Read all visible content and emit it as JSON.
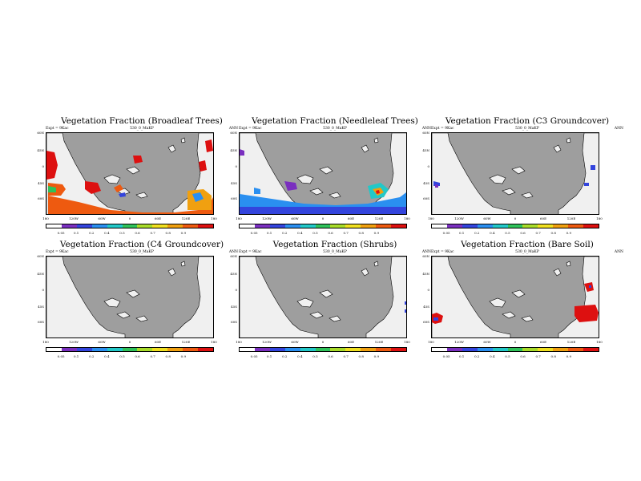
{
  "panels": [
    {
      "title": "Vegetation Fraction (Broadleaf Trees)",
      "expt": "Expt = 9Kac",
      "subtitle": "530_0_MaKP",
      "period": "ANN",
      "overlay": "broadleaf"
    },
    {
      "title": "Vegetation Fraction (Needleleaf Trees)",
      "expt": "Expt = 9Kac",
      "subtitle": "530_0_MaKP",
      "period": "ANN",
      "overlay": "needleleaf"
    },
    {
      "title": "Vegetation Fraction (C3 Groundcover)",
      "expt": "Expt = 9Kac",
      "subtitle": "530_0_MaKP",
      "period": "ANN",
      "overlay": "c3"
    },
    {
      "title": "Vegetation Fraction (C4 Groundcover)",
      "expt": "Expt = 9Kac",
      "subtitle": "530_0_MaKP",
      "period": "ANN",
      "overlay": "c4"
    },
    {
      "title": "Vegetation Fraction (Shrubs)",
      "expt": "Expt = 9Kac",
      "subtitle": "530_0_MaKP",
      "period": "ANN",
      "overlay": "shrubs"
    },
    {
      "title": "Vegetation Fraction (Bare Soil)",
      "expt": "Expt = 9Kac",
      "subtitle": "530_0_MaKP",
      "period": "ANN",
      "overlay": "bare"
    }
  ],
  "lat_labels": [
    "60N",
    "45N",
    "0",
    "45S",
    "60S"
  ],
  "lon_labels": [
    "180",
    "120W",
    "60W",
    "0",
    "60E",
    "120E",
    "180"
  ],
  "colorbar_labels": [
    "0.05",
    "0.1",
    "0.2",
    "0.4",
    "0.5",
    "0.6",
    "0.7",
    "0.8",
    "0.9"
  ],
  "colorbar_colors": [
    "#ffffff",
    "#7a2fbf",
    "#3344dd",
    "#2a8ff0",
    "#22c8c8",
    "#2fc25a",
    "#a8dc2a",
    "#f0e020",
    "#f0a010",
    "#ee5a10",
    "#dd1010"
  ],
  "colors": {
    "ocean": "#9e9e9e",
    "land": "#f0f0f0"
  }
}
